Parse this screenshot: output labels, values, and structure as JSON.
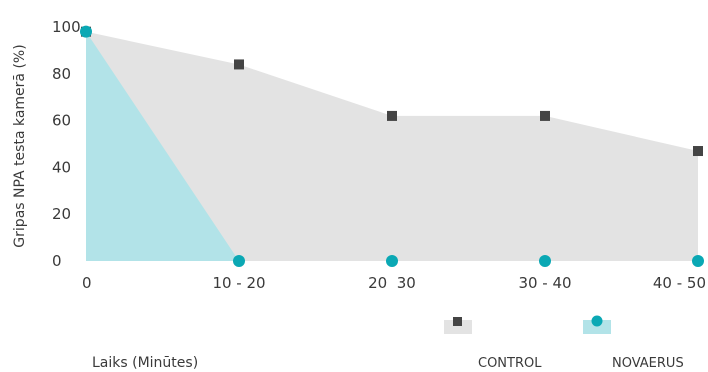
{
  "chart_data": {
    "type": "area",
    "ylabel": "Gripas NPA testa kamerā (%)",
    "xlabel": "Laiks (Minūtes)",
    "ylim": [
      0,
      100
    ],
    "y_ticks": [
      0,
      20,
      40,
      60,
      80,
      100
    ],
    "x_tick_labels": [
      "0",
      "10 - 20",
      "20  30",
      "30 - 40",
      "40 - 50"
    ],
    "legend_position": "bottom-right",
    "grid": false,
    "series": [
      {
        "name": "CONTROL",
        "marker": "square",
        "marker_color": "#444444",
        "fill_color": "#e3e3e3",
        "values": [
          98,
          84,
          62,
          62,
          47
        ]
      },
      {
        "name": "NOVAERUS",
        "marker": "circle",
        "marker_color": "#0aa8b4",
        "fill_color": "#b2e3e8",
        "values": [
          98,
          0,
          0,
          0,
          0
        ]
      }
    ]
  }
}
